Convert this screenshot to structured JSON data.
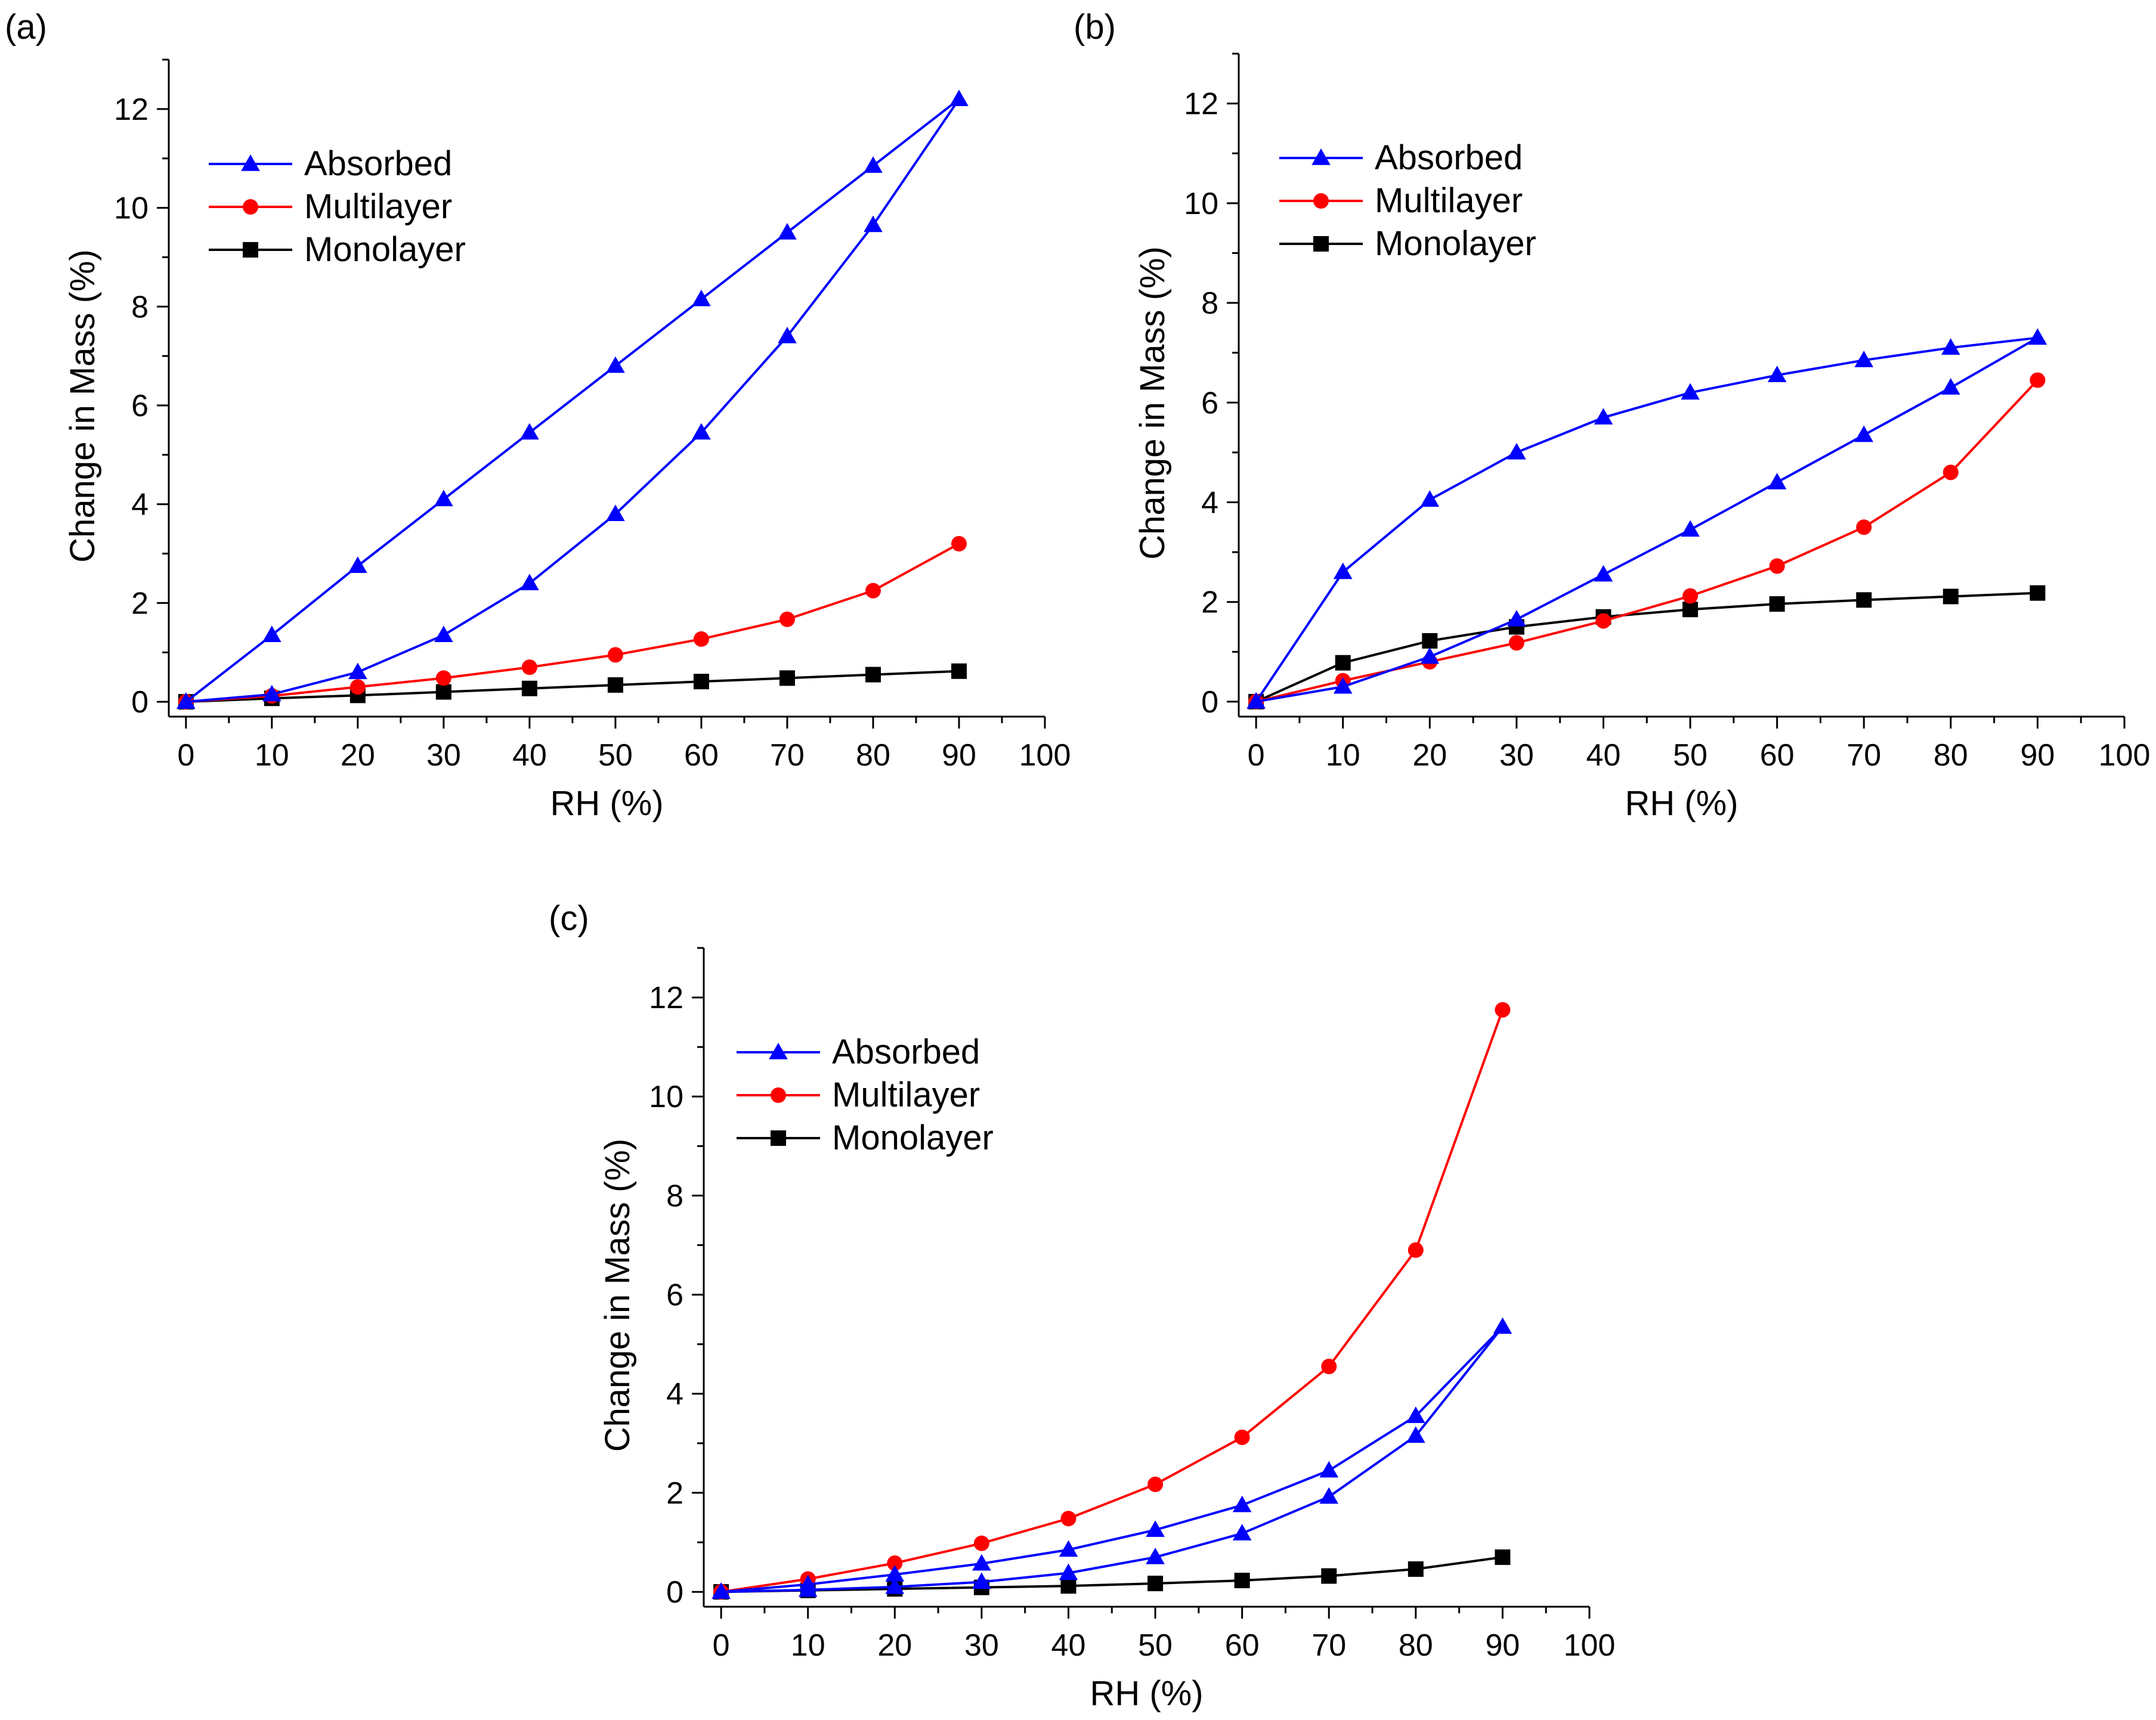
{
  "chart_data": [
    {
      "type": "line",
      "panel_label": "(a)",
      "xlabel": "RH (%)",
      "ylabel": "Change in Mass (%)",
      "xlim": [
        -2,
        100
      ],
      "ylim": [
        -0.3,
        13.0
      ],
      "xticks": [
        "0",
        "10",
        "20",
        "30",
        "40",
        "50",
        "60",
        "70",
        "80",
        "90",
        "100"
      ],
      "yticks": [
        "0",
        "2",
        "4",
        "6",
        "8",
        "10",
        "12"
      ],
      "legend": [
        "Absorbed",
        "Multilayer",
        "Monolayer"
      ],
      "series": [
        {
          "name": "Absorbed",
          "color": "#0000ff",
          "marker": "triangle",
          "x": [
            0,
            10,
            20,
            30,
            40,
            50,
            60,
            70,
            80,
            90,
            80,
            70,
            60,
            50,
            40,
            30,
            20,
            10,
            0
          ],
          "y": [
            0,
            0.15,
            0.6,
            1.35,
            2.4,
            3.8,
            5.45,
            7.4,
            9.65,
            12.2,
            10.85,
            9.5,
            8.15,
            6.8,
            5.45,
            4.1,
            2.75,
            1.35,
            0
          ]
        },
        {
          "name": "Multilayer",
          "color": "#ff0000",
          "marker": "circle",
          "x": [
            0,
            10,
            20,
            30,
            40,
            50,
            60,
            70,
            80,
            90
          ],
          "y": [
            0,
            0.12,
            0.3,
            0.48,
            0.7,
            0.95,
            1.27,
            1.67,
            2.25,
            3.2
          ]
        },
        {
          "name": "Monolayer",
          "color": "#000000",
          "marker": "square",
          "x": [
            0,
            10,
            20,
            30,
            40,
            50,
            60,
            70,
            80,
            90
          ],
          "y": [
            0,
            0.07,
            0.13,
            0.2,
            0.27,
            0.34,
            0.41,
            0.48,
            0.55,
            0.62
          ]
        }
      ]
    },
    {
      "type": "line",
      "panel_label": "(b)",
      "xlabel": "RH (%)",
      "ylabel": "Change in Mass (%)",
      "xlim": [
        -2,
        100
      ],
      "ylim": [
        -0.3,
        13.0
      ],
      "xticks": [
        "0",
        "10",
        "20",
        "30",
        "40",
        "50",
        "60",
        "70",
        "80",
        "90",
        "100"
      ],
      "yticks": [
        "0",
        "2",
        "4",
        "6",
        "8",
        "10",
        "12"
      ],
      "legend": [
        "Absorbed",
        "Multilayer",
        "Monolayer"
      ],
      "series": [
        {
          "name": "Absorbed",
          "color": "#0000ff",
          "marker": "triangle",
          "x": [
            0,
            10,
            20,
            30,
            40,
            50,
            60,
            70,
            80,
            90,
            80,
            70,
            60,
            50,
            40,
            30,
            20,
            10,
            0
          ],
          "y": [
            0,
            0.3,
            0.9,
            1.65,
            2.55,
            3.45,
            4.4,
            5.35,
            6.3,
            7.3,
            7.1,
            6.85,
            6.55,
            6.2,
            5.7,
            5.0,
            4.05,
            2.6,
            0
          ]
        },
        {
          "name": "Multilayer",
          "color": "#ff0000",
          "marker": "circle",
          "x": [
            0,
            10,
            20,
            30,
            40,
            50,
            60,
            70,
            80,
            90
          ],
          "y": [
            0,
            0.42,
            0.8,
            1.18,
            1.62,
            2.12,
            2.72,
            3.5,
            4.6,
            6.45
          ]
        },
        {
          "name": "Monolayer",
          "color": "#000000",
          "marker": "square",
          "x": [
            0,
            10,
            20,
            30,
            40,
            50,
            60,
            70,
            80,
            90
          ],
          "y": [
            0,
            0.78,
            1.22,
            1.5,
            1.7,
            1.85,
            1.96,
            2.04,
            2.11,
            2.18
          ]
        }
      ]
    },
    {
      "type": "line",
      "panel_label": "(c)",
      "xlabel": "RH (%)",
      "ylabel": "Change in Mass (%)",
      "xlim": [
        -2,
        100
      ],
      "ylim": [
        -0.3,
        13.0
      ],
      "xticks": [
        "0",
        "10",
        "20",
        "30",
        "40",
        "50",
        "60",
        "70",
        "80",
        "90",
        "100"
      ],
      "yticks": [
        "0",
        "2",
        "4",
        "6",
        "8",
        "10",
        "12"
      ],
      "legend": [
        "Absorbed",
        "Multilayer",
        "Monolayer"
      ],
      "series": [
        {
          "name": "Absorbed",
          "color": "#0000ff",
          "marker": "triangle",
          "x": [
            0,
            10,
            20,
            30,
            40,
            50,
            60,
            70,
            80,
            90,
            80,
            70,
            60,
            50,
            40,
            30,
            20,
            10,
            0
          ],
          "y": [
            0,
            0.04,
            0.1,
            0.2,
            0.38,
            0.7,
            1.18,
            1.92,
            3.15,
            5.35,
            3.55,
            2.45,
            1.75,
            1.25,
            0.85,
            0.57,
            0.35,
            0.15,
            0
          ]
        },
        {
          "name": "Multilayer",
          "color": "#ff0000",
          "marker": "circle",
          "x": [
            0,
            10,
            20,
            30,
            40,
            50,
            60,
            70,
            80,
            90
          ],
          "y": [
            0,
            0.26,
            0.58,
            0.98,
            1.48,
            2.17,
            3.12,
            4.55,
            6.9,
            11.75
          ]
        },
        {
          "name": "Monolayer",
          "color": "#000000",
          "marker": "square",
          "x": [
            0,
            10,
            20,
            30,
            40,
            50,
            60,
            70,
            80,
            90
          ],
          "y": [
            0,
            0.03,
            0.06,
            0.09,
            0.12,
            0.17,
            0.23,
            0.32,
            0.46,
            0.7
          ]
        }
      ]
    }
  ]
}
